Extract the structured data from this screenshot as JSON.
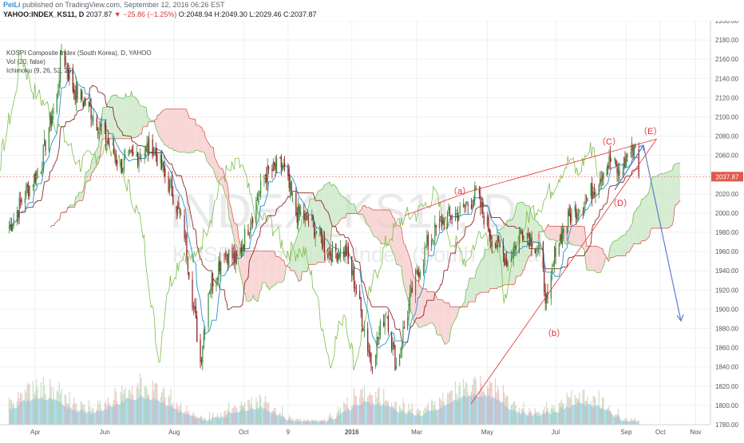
{
  "header": {
    "user": "PeiLi",
    "published": "published on TradingView.com, September 12, 2016 06:26 EST",
    "symbol": "YAHOO:INDEX_KS11, D",
    "last": "2037.87",
    "arrow": "▼",
    "change": "−25.86 (−1.25%)",
    "o_label": "O:",
    "o_val": "2048.94",
    "h_label": "H:",
    "h_val": "2049.30",
    "l_label": "L:",
    "l_val": "2029.46",
    "c_label": "C:",
    "c_val": "2037.87"
  },
  "legend": {
    "title": "KOSPI Composite Index (South Korea), D, YAHOO",
    "vol": "Vol (20, false)",
    "ichimoku": "Ichimoku (9, 26, 52, 26)"
  },
  "watermark": {
    "big": "INDEX_KS11, D",
    "small": "KOSPI Composite Index (South Korea)"
  },
  "colors": {
    "up": "#3a8a3a",
    "down": "#8b1a1a",
    "tenkan": "#2b8fd0",
    "kijun": "#8b2a2a",
    "cloud_bull": "#c7e6c1",
    "cloud_bear": "#f5c8c8",
    "senkou_a": "#6fbf5a",
    "senkou_b": "#e05a5a",
    "chikou": "#7dbf4a",
    "volume_area": "#8fcfee",
    "annotation_red": "#e03030",
    "arrow_blue": "#5b7fc9",
    "price_line": "#e07050"
  },
  "chart_data": {
    "type": "candlestick",
    "title": "KOSPI Composite Index (South Korea), D, YAHOO",
    "x_axis": {
      "tick_labels": [
        "Apr",
        "Jun",
        "Aug",
        "Oct",
        "9",
        "2016",
        "Mar",
        "May",
        "Jul",
        "Sep",
        "Oct",
        "Nov"
      ],
      "range": [
        "2015-03",
        "2016-11"
      ]
    },
    "y_axis": {
      "range": [
        1780,
        2200
      ],
      "ticks": [
        2200,
        2180,
        2160,
        2140,
        2120,
        2100,
        2080,
        2060,
        2040,
        2020,
        2000,
        1980,
        1960,
        1940,
        1920,
        1900,
        1880,
        1860,
        1840,
        1820,
        1800,
        1780
      ],
      "current_price": 2037.87,
      "current_price_label": "2037.87"
    },
    "price_path": [
      [
        "2015-03-09",
        1985
      ],
      [
        "2015-03-23",
        2020
      ],
      [
        "2015-04-06",
        2050
      ],
      [
        "2015-04-13",
        2090
      ],
      [
        "2015-04-20",
        2120
      ],
      [
        "2015-04-24",
        2170
      ],
      [
        "2015-05-04",
        2130
      ],
      [
        "2015-05-18",
        2110
      ],
      [
        "2015-06-01",
        2080
      ],
      [
        "2015-06-15",
        2050
      ],
      [
        "2015-06-29",
        2060
      ],
      [
        "2015-07-13",
        2070
      ],
      [
        "2015-07-20",
        2050
      ],
      [
        "2015-07-31",
        2020
      ],
      [
        "2015-08-10",
        1980
      ],
      [
        "2015-08-24",
        1845
      ],
      [
        "2015-08-31",
        1920
      ],
      [
        "2015-09-14",
        1960
      ],
      [
        "2015-09-25",
        1950
      ],
      [
        "2015-10-09",
        2000
      ],
      [
        "2015-10-20",
        2040
      ],
      [
        "2015-11-04",
        2050
      ],
      [
        "2015-11-16",
        2000
      ],
      [
        "2015-11-30",
        1990
      ],
      [
        "2015-12-14",
        1960
      ],
      [
        "2015-12-30",
        1960
      ],
      [
        "2016-01-08",
        1920
      ],
      [
        "2016-01-21",
        1845
      ],
      [
        "2016-02-03",
        1900
      ],
      [
        "2016-02-12",
        1840
      ],
      [
        "2016-02-26",
        1920
      ],
      [
        "2016-03-11",
        1970
      ],
      [
        "2016-03-25",
        1995
      ],
      [
        "2016-04-08",
        2000
      ],
      [
        "2016-04-22",
        2020
      ],
      [
        "2016-05-06",
        1975
      ],
      [
        "2016-05-20",
        1950
      ],
      [
        "2016-06-03",
        1985
      ],
      [
        "2016-06-17",
        1960
      ],
      [
        "2016-06-24",
        1900
      ],
      [
        "2016-07-01",
        1965
      ],
      [
        "2016-07-15",
        2000
      ],
      [
        "2016-07-29",
        2015
      ],
      [
        "2016-08-12",
        2045
      ],
      [
        "2016-08-19",
        2055
      ],
      [
        "2016-08-26",
        2040
      ],
      [
        "2016-09-02",
        2060
      ],
      [
        "2016-09-09",
        2070
      ],
      [
        "2016-09-12",
        2037.87
      ]
    ],
    "volume_scale": "relative",
    "series": [
      {
        "name": "Vol (20, false)"
      },
      {
        "name": "Ichimoku (9, 26, 52, 26)"
      }
    ]
  },
  "annotations": {
    "a": "（a）",
    "b": "（b）",
    "c": "（C）",
    "d": "（D）",
    "e": "（E）"
  }
}
